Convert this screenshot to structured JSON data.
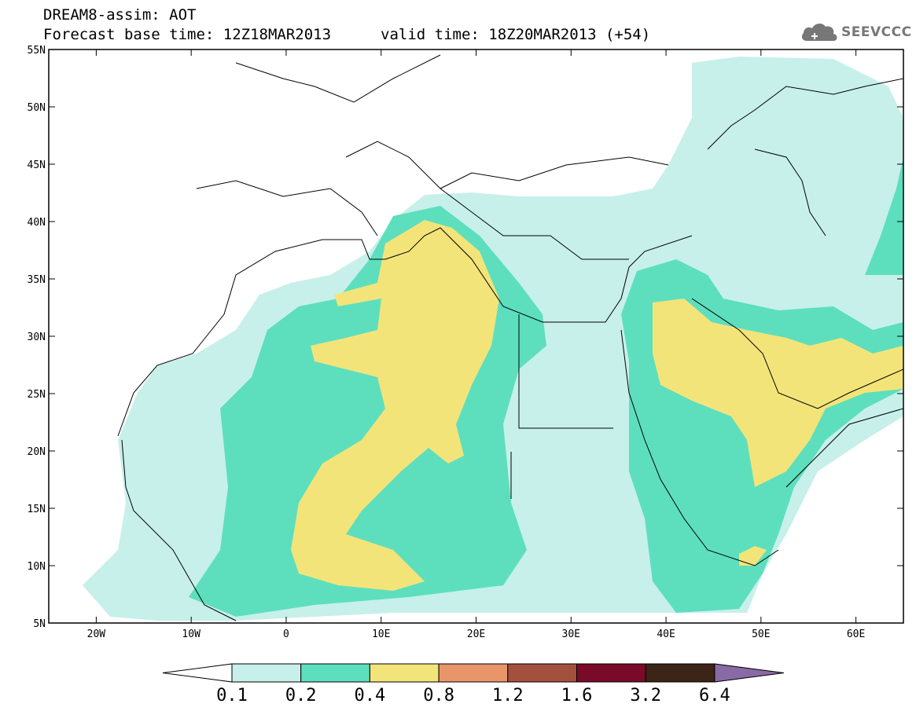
{
  "header": {
    "title_line1": "DREAM8-assim: AOT",
    "title_line2": "Forecast base time: 12Z18MAR2013",
    "valid_time": "valid time: 18Z20MAR2013 (+54)",
    "logo_text": "SEEVCCC",
    "logo_icon": "cloud-logo-icon"
  },
  "map": {
    "lon_range": [
      -25,
      65
    ],
    "lat_range": [
      5,
      55
    ],
    "lat_labels": [
      "55N",
      "50N",
      "45N",
      "40N",
      "35N",
      "30N",
      "25N",
      "20N",
      "15N",
      "10N",
      "5N"
    ],
    "lat_values": [
      55,
      50,
      45,
      40,
      35,
      30,
      25,
      20,
      15,
      10,
      5
    ],
    "lon_labels": [
      "20W",
      "10W",
      "0",
      "10E",
      "20E",
      "30E",
      "40E",
      "50E",
      "60E"
    ],
    "lon_values": [
      -20,
      -10,
      0,
      10,
      20,
      30,
      40,
      50,
      60
    ],
    "colors": {
      "c01": "#c7f0ea",
      "c02": "#5ddfbe",
      "c04": "#f3e47a",
      "c08": "#e8956a",
      "c12": "#a4503e",
      "c16": "#7a0a2a",
      "c32": "#3c2416",
      "c64": "#8a6aa6"
    }
  },
  "colorbar": {
    "labels": [
      "0.1",
      "0.2",
      "0.4",
      "0.8",
      "1.2",
      "1.6",
      "3.2",
      "6.4"
    ],
    "colors": [
      "#c7f0ea",
      "#5ddfbe",
      "#f3e47a",
      "#e8956a",
      "#a4503e",
      "#7a0a2a",
      "#3c2416"
    ],
    "under_color": "#ffffff",
    "over_color": "#8a6aa6"
  }
}
